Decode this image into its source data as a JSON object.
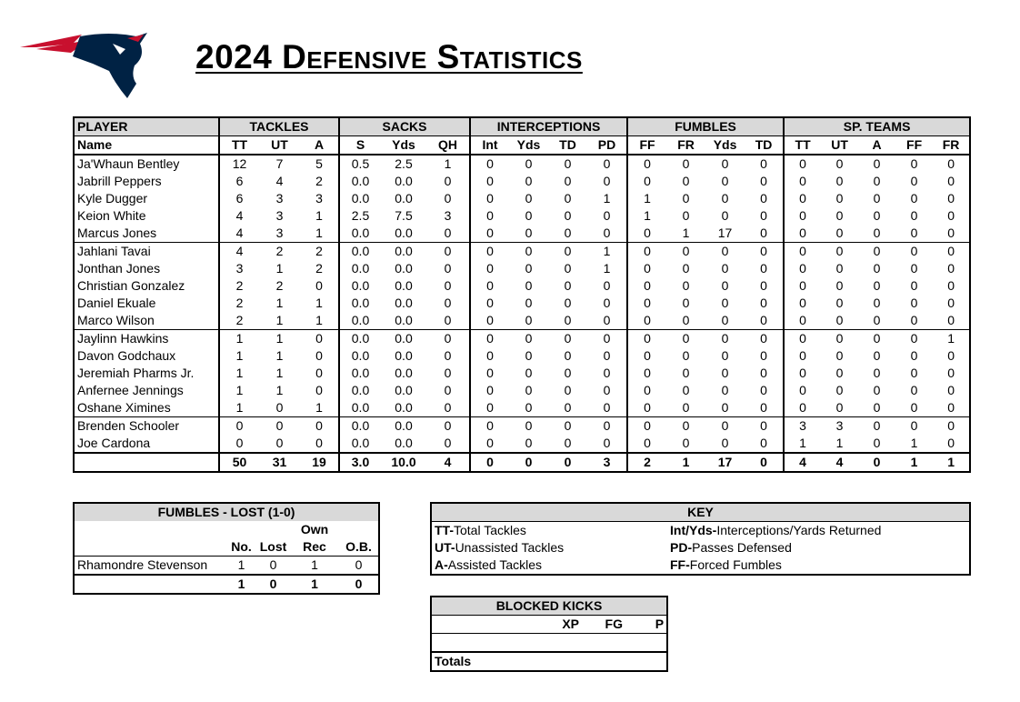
{
  "header": {
    "title": "2024 Defensive Statistics"
  },
  "table": {
    "groups": [
      "PLAYER",
      "TACKLES",
      "SACKS",
      "INTERCEPTIONS",
      "FUMBLES",
      "SP. TEAMS"
    ],
    "columns": [
      "Name",
      "TT",
      "UT",
      "A",
      "S",
      "Yds",
      "QH",
      "Int",
      "Yds",
      "TD",
      "PD",
      "FF",
      "FR",
      "Yds",
      "TD",
      "TT",
      "UT",
      "A",
      "FF",
      "FR"
    ],
    "rows": [
      [
        "Ja'Whaun Bentley",
        "12",
        "7",
        "5",
        "0.5",
        "2.5",
        "1",
        "0",
        "0",
        "0",
        "0",
        "0",
        "0",
        "0",
        "0",
        "0",
        "0",
        "0",
        "0",
        "0"
      ],
      [
        "Jabrill Peppers",
        "6",
        "4",
        "2",
        "0.0",
        "0.0",
        "0",
        "0",
        "0",
        "0",
        "0",
        "0",
        "0",
        "0",
        "0",
        "0",
        "0",
        "0",
        "0",
        "0"
      ],
      [
        "Kyle Dugger",
        "6",
        "3",
        "3",
        "0.0",
        "0.0",
        "0",
        "0",
        "0",
        "0",
        "1",
        "1",
        "0",
        "0",
        "0",
        "0",
        "0",
        "0",
        "0",
        "0"
      ],
      [
        "Keion White",
        "4",
        "3",
        "1",
        "2.5",
        "7.5",
        "3",
        "0",
        "0",
        "0",
        "0",
        "1",
        "0",
        "0",
        "0",
        "0",
        "0",
        "0",
        "0",
        "0"
      ],
      [
        "Marcus Jones",
        "4",
        "3",
        "1",
        "0.0",
        "0.0",
        "0",
        "0",
        "0",
        "0",
        "0",
        "0",
        "1",
        "17",
        "0",
        "0",
        "0",
        "0",
        "0",
        "0"
      ],
      [
        "Jahlani Tavai",
        "4",
        "2",
        "2",
        "0.0",
        "0.0",
        "0",
        "0",
        "0",
        "0",
        "1",
        "0",
        "0",
        "0",
        "0",
        "0",
        "0",
        "0",
        "0",
        "0"
      ],
      [
        "Jonthan Jones",
        "3",
        "1",
        "2",
        "0.0",
        "0.0",
        "0",
        "0",
        "0",
        "0",
        "1",
        "0",
        "0",
        "0",
        "0",
        "0",
        "0",
        "0",
        "0",
        "0"
      ],
      [
        "Christian Gonzalez",
        "2",
        "2",
        "0",
        "0.0",
        "0.0",
        "0",
        "0",
        "0",
        "0",
        "0",
        "0",
        "0",
        "0",
        "0",
        "0",
        "0",
        "0",
        "0",
        "0"
      ],
      [
        "Daniel Ekuale",
        "2",
        "1",
        "1",
        "0.0",
        "0.0",
        "0",
        "0",
        "0",
        "0",
        "0",
        "0",
        "0",
        "0",
        "0",
        "0",
        "0",
        "0",
        "0",
        "0"
      ],
      [
        "Marco Wilson",
        "2",
        "1",
        "1",
        "0.0",
        "0.0",
        "0",
        "0",
        "0",
        "0",
        "0",
        "0",
        "0",
        "0",
        "0",
        "0",
        "0",
        "0",
        "0",
        "0"
      ],
      [
        "Jaylinn Hawkins",
        "1",
        "1",
        "0",
        "0.0",
        "0.0",
        "0",
        "0",
        "0",
        "0",
        "0",
        "0",
        "0",
        "0",
        "0",
        "0",
        "0",
        "0",
        "0",
        "1"
      ],
      [
        "Davon Godchaux",
        "1",
        "1",
        "0",
        "0.0",
        "0.0",
        "0",
        "0",
        "0",
        "0",
        "0",
        "0",
        "0",
        "0",
        "0",
        "0",
        "0",
        "0",
        "0",
        "0"
      ],
      [
        "Jeremiah Pharms Jr.",
        "1",
        "1",
        "0",
        "0.0",
        "0.0",
        "0",
        "0",
        "0",
        "0",
        "0",
        "0",
        "0",
        "0",
        "0",
        "0",
        "0",
        "0",
        "0",
        "0"
      ],
      [
        "Anfernee Jennings",
        "1",
        "1",
        "0",
        "0.0",
        "0.0",
        "0",
        "0",
        "0",
        "0",
        "0",
        "0",
        "0",
        "0",
        "0",
        "0",
        "0",
        "0",
        "0",
        "0"
      ],
      [
        "Oshane Ximines",
        "1",
        "0",
        "1",
        "0.0",
        "0.0",
        "0",
        "0",
        "0",
        "0",
        "0",
        "0",
        "0",
        "0",
        "0",
        "0",
        "0",
        "0",
        "0",
        "0"
      ],
      [
        "Brenden Schooler",
        "0",
        "0",
        "0",
        "0.0",
        "0.0",
        "0",
        "0",
        "0",
        "0",
        "0",
        "0",
        "0",
        "0",
        "0",
        "3",
        "3",
        "0",
        "0",
        "0"
      ],
      [
        "Joe Cardona",
        "0",
        "0",
        "0",
        "0.0",
        "0.0",
        "0",
        "0",
        "0",
        "0",
        "0",
        "0",
        "0",
        "0",
        "0",
        "1",
        "1",
        "0",
        "1",
        "0"
      ]
    ],
    "totals": [
      "50",
      "31",
      "19",
      "3.0",
      "10.0",
      "4",
      "0",
      "0",
      "0",
      "3",
      "2",
      "1",
      "17",
      "0",
      "4",
      "4",
      "0",
      "1",
      "1"
    ]
  },
  "fumbles": {
    "title": "FUMBLES - LOST (1-0)",
    "super": "Own",
    "columns": [
      "No.",
      "Lost",
      "Rec",
      "O.B."
    ],
    "rows": [
      [
        "Rhamondre Stevenson",
        "1",
        "0",
        "1",
        "0"
      ]
    ],
    "totals": [
      "1",
      "0",
      "1",
      "0"
    ]
  },
  "key": {
    "title": "KEY",
    "left": [
      {
        "abbr": "TT-",
        "text": "Total Tackles"
      },
      {
        "abbr": "UT-",
        "text": "Unassisted Tackles"
      },
      {
        "abbr": "A-",
        "text": "Assisted Tackles"
      }
    ],
    "right": [
      {
        "abbr": "Int/Yds-",
        "text": "Interceptions/Yards Returned"
      },
      {
        "abbr": "PD-",
        "text": "Passes Defensed"
      },
      {
        "abbr": "FF-",
        "text": "Forced Fumbles"
      }
    ]
  },
  "blocked": {
    "title": "BLOCKED KICKS",
    "columns": [
      "XP",
      "FG",
      "P"
    ],
    "totals_label": "Totals"
  }
}
